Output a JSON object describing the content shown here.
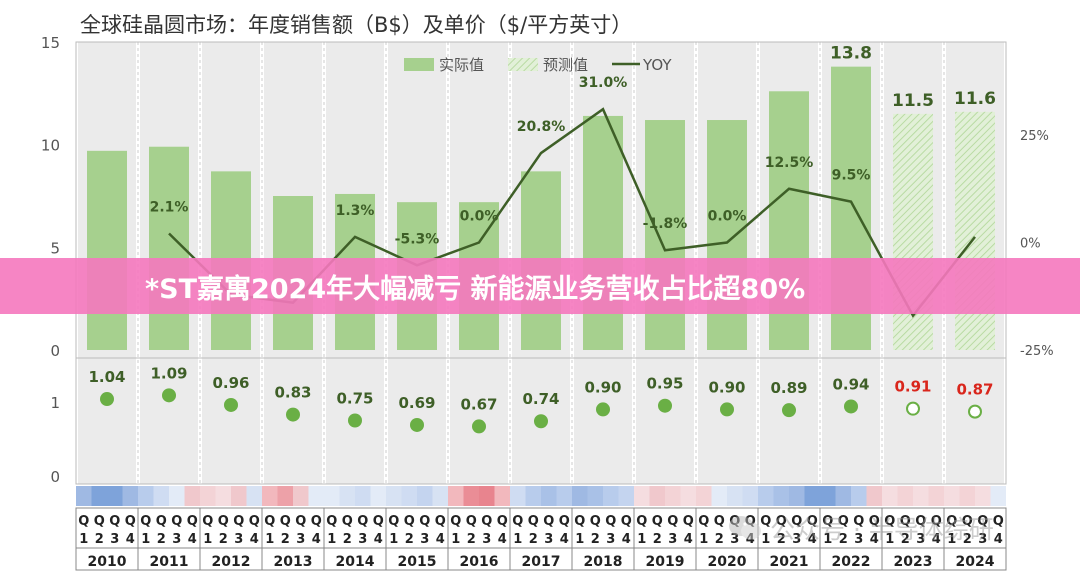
{
  "chart_data": {
    "type": "bar",
    "title": "全球硅晶圆市场：年度销售额（B$）及单价（$/平方英寸）",
    "categories": [
      "2010",
      "2011",
      "2012",
      "2013",
      "2014",
      "2015",
      "2016",
      "2017",
      "2018",
      "2019",
      "2020",
      "2021",
      "2022",
      "2023",
      "2024"
    ],
    "quarter_labels": [
      "1",
      "2",
      "3",
      "4"
    ],
    "quarter_prefix": "Q",
    "legend": [
      "实际值",
      "预测值",
      "YOY"
    ],
    "legend_position": "top-right",
    "sales": {
      "values": [
        9.7,
        9.9,
        8.7,
        7.5,
        7.6,
        7.2,
        7.2,
        8.7,
        11.4,
        11.2,
        11.2,
        12.6,
        13.8,
        11.5,
        11.6
      ],
      "forecast": [
        false,
        false,
        false,
        false,
        false,
        false,
        false,
        false,
        false,
        false,
        false,
        false,
        false,
        true,
        true
      ],
      "labels": [
        "",
        "",
        "",
        "",
        "",
        "",
        "",
        "",
        "",
        "",
        "",
        "",
        "13.8",
        "11.5",
        "11.6"
      ],
      "ylim": [
        0,
        15
      ],
      "yticks": [
        "0",
        "5",
        "10",
        "15"
      ]
    },
    "yoy": {
      "values": [
        null,
        2.1,
        -12.1,
        -14.0,
        1.3,
        -5.3,
        0.0,
        20.8,
        31.0,
        -1.8,
        0.0,
        12.5,
        9.5,
        -17.0,
        1.3
      ],
      "labels": [
        "",
        "2.1%",
        "",
        "",
        "1.3%",
        "-5.3%",
        "0.0%",
        "20.8%",
        "31.0%",
        "-1.8%",
        "0.0%",
        "12.5%",
        "9.5%",
        "",
        ""
      ],
      "ylim": [
        -25,
        25
      ],
      "yticks": [
        "-25%",
        "0%",
        "25%"
      ]
    },
    "price": {
      "values": [
        1.04,
        1.09,
        0.96,
        0.83,
        0.75,
        0.69,
        0.67,
        0.74,
        0.9,
        0.95,
        0.9,
        0.89,
        0.94,
        0.91,
        0.87
      ],
      "labels": [
        "1.04",
        "1.09",
        "0.96",
        "0.83",
        "0.75",
        "0.69",
        "0.67",
        "0.74",
        "0.90",
        "0.95",
        "0.90",
        "0.89",
        "0.94",
        "0.91",
        "0.87"
      ],
      "forecast": [
        false,
        false,
        false,
        false,
        false,
        false,
        false,
        false,
        false,
        false,
        false,
        false,
        false,
        true,
        true
      ],
      "ylim": [
        0,
        1.5
      ],
      "yticks": [
        "0",
        "1"
      ]
    },
    "colors": {
      "actual": "#a6d08e",
      "forecast": "#cfe6bf",
      "yoy_line": "#3e5f27",
      "dot": "#6aaf45",
      "forecast_label": "#d9261c",
      "label": "#3e5f27",
      "column_band": "#ebebeb"
    }
  },
  "banner": {
    "title": "*ST嘉寓2024年大幅减亏 新能源业务营收占比超80%"
  },
  "watermark": {
    "text": "公众号 · 半导体综研"
  }
}
